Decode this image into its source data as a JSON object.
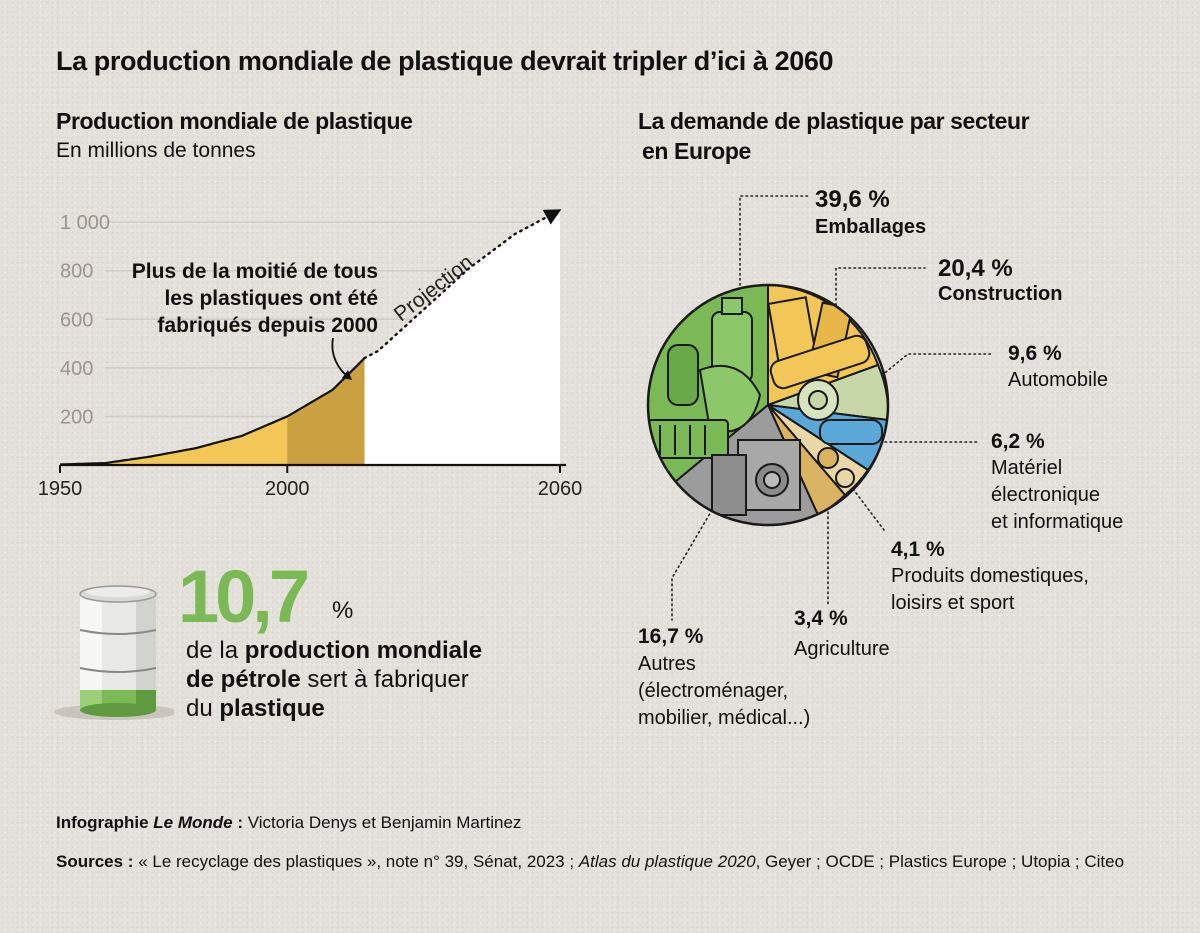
{
  "title": "La production mondiale de plastique devrait tripler d’ici à 2060",
  "chart_data": [
    {
      "type": "area",
      "title": "Production mondiale de plastique",
      "ylabel": "En millions de tonnes",
      "x": [
        1950,
        1960,
        1970,
        1980,
        1990,
        2000,
        2010,
        2017,
        2020,
        2030,
        2040,
        2050,
        2060
      ],
      "values": [
        2,
        8,
        35,
        70,
        120,
        200,
        310,
        440,
        470,
        640,
        810,
        950,
        1050
      ],
      "historical_until": 2017,
      "projection_from": 2017,
      "highlight_range": [
        2000,
        2017
      ],
      "ylim": [
        0,
        1100
      ],
      "xlim": [
        1950,
        2060
      ],
      "yticks": [
        "200",
        "400",
        "600",
        "800",
        "1 000"
      ],
      "xticks": [
        "1950",
        "2000",
        "2060"
      ],
      "projection_label": "Projection",
      "annotation": "Plus de la moitié de tous les plastiques ont été fabriqués depuis 2000",
      "colors": {
        "historical": "#f3c757",
        "highlight": "#c9a141",
        "projection": "#ffffff"
      },
      "grid": true
    },
    {
      "type": "pie",
      "title": "La demande de plastique par secteur en Europe",
      "slices": [
        {
          "pct": "39,6 %",
          "label": "Emballages",
          "value": 39.6
        },
        {
          "pct": "20,4 %",
          "label": "Construction",
          "value": 20.4
        },
        {
          "pct": "9,6 %",
          "label": "Automobile",
          "value": 9.6
        },
        {
          "pct": "6,2 %",
          "label": "Matériel électronique et informatique",
          "value": 6.2
        },
        {
          "pct": "4,1 %",
          "label": "Produits domestiques, loisirs et sport",
          "value": 4.1
        },
        {
          "pct": "3,4 %",
          "label": "Agriculture",
          "value": 3.4
        },
        {
          "pct": "16,7 %",
          "label": "Autres (électroménager, mobilier, médical...)",
          "value": 16.7
        }
      ]
    }
  ],
  "left": {
    "title": "Production mondiale de plastique",
    "unit": "En millions de tonnes",
    "annotation": [
      "Plus de la moitié de tous",
      "les plastiques ont été",
      "fabriqués depuis 2000"
    ]
  },
  "right": {
    "title_line1": "La demande de plastique par secteur",
    "title_line2": "en Europe",
    "labels": {
      "emballages": {
        "pct": "39,6 %",
        "name": "Emballages"
      },
      "construction": {
        "pct": "20,4 %",
        "name": "Construction"
      },
      "automobile": {
        "pct": "9,6 %",
        "name": "Automobile"
      },
      "electronique": {
        "pct": "6,2 %",
        "l1": "Matériel",
        "l2": "électronique",
        "l3": "et informatique"
      },
      "domestique": {
        "pct": "4,1 %",
        "l1": "Produits domestiques,",
        "l2": "loisirs et sport"
      },
      "agriculture": {
        "pct": "3,4 %",
        "name": "Agriculture"
      },
      "autres": {
        "pct": "16,7 %",
        "l1": "Autres",
        "l2": "(électroménager,",
        "l3": "mobilier, médical...)"
      }
    }
  },
  "oil": {
    "value": "10,7",
    "symbol": "%",
    "t1": "de la ",
    "b1": "production mondiale",
    "b2": "de pétrole",
    "t2": " sert à fabriquer",
    "t3": "du ",
    "b3": "plastique"
  },
  "credit": {
    "label": "Infographie ",
    "publication": "Le Monde",
    "sep": " : ",
    "authors": "Victoria Denys et Benjamin Martinez"
  },
  "sources": {
    "label": "Sources :",
    "part1": " « Le recyclage des plastiques », note n° 39, Sénat, 2023 ; ",
    "italic": "Atlas du plastique 2020",
    "part2": ", Geyer ; OCDE ; Plastics Europe ; Utopia ; Citeo"
  },
  "colors": {
    "green": "#7ab955",
    "gold": "#f3c757",
    "dark_gold": "#c9a141",
    "light_green": "#a9d18e",
    "blue": "#5aa8d8",
    "grey": "#9c9c9c"
  }
}
